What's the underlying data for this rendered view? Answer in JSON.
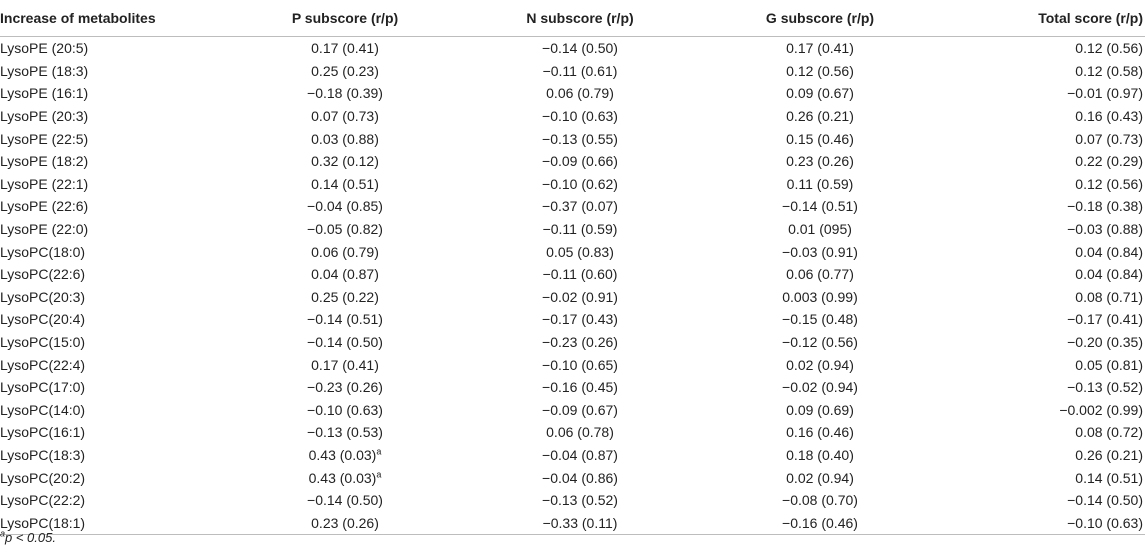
{
  "table": {
    "headers": [
      "Increase of metabolites",
      "P subscore (r/p)",
      "N subscore (r/p)",
      "G subscore (r/p)",
      "Total score (r/p)"
    ],
    "rows": [
      [
        "LysoPE (20:5)",
        "0.17 (0.41)",
        "−0.14 (0.50)",
        "0.17 (0.41)",
        "0.12 (0.56)"
      ],
      [
        "LysoPE (18:3)",
        "0.25 (0.23)",
        "−0.11 (0.61)",
        "0.12 (0.56)",
        "0.12 (0.58)"
      ],
      [
        "LysoPE (16:1)",
        "−0.18 (0.39)",
        "0.06 (0.79)",
        "0.09 (0.67)",
        "−0.01 (0.97)"
      ],
      [
        "LysoPE (20:3)",
        "0.07 (0.73)",
        "−0.10 (0.63)",
        "0.26 (0.21)",
        "0.16 (0.43)"
      ],
      [
        "LysoPE (22:5)",
        "0.03 (0.88)",
        "−0.13 (0.55)",
        "0.15 (0.46)",
        "0.07 (0.73)"
      ],
      [
        "LysoPE (18:2)",
        "0.32 (0.12)",
        "−0.09 (0.66)",
        "0.23 (0.26)",
        "0.22 (0.29)"
      ],
      [
        "LysoPE (22:1)",
        "0.14 (0.51)",
        "−0.10 (0.62)",
        "0.11 (0.59)",
        "0.12 (0.56)"
      ],
      [
        "LysoPE (22:6)",
        "−0.04 (0.85)",
        "−0.37 (0.07)",
        "−0.14 (0.51)",
        "−0.18 (0.38)"
      ],
      [
        "LysoPE (22:0)",
        "−0.05 (0.82)",
        "−0.11 (0.59)",
        "0.01 (095)",
        "−0.03 (0.88)"
      ],
      [
        "LysoPC(18:0)",
        "0.06 (0.79)",
        "0.05 (0.83)",
        "−0.03 (0.91)",
        "0.04 (0.84)"
      ],
      [
        "LysoPC(22:6)",
        "0.04 (0.87)",
        "−0.11 (0.60)",
        "0.06 (0.77)",
        "0.04 (0.84)"
      ],
      [
        "LysoPC(20:3)",
        "0.25 (0.22)",
        "−0.02 (0.91)",
        "0.003 (0.99)",
        "0.08 (0.71)"
      ],
      [
        "LysoPC(20:4)",
        "−0.14 (0.51)",
        "−0.17 (0.43)",
        "−0.15 (0.48)",
        "−0.17 (0.41)"
      ],
      [
        "LysoPC(15:0)",
        "−0.14 (0.50)",
        "−0.23 (0.26)",
        "−0.12 (0.56)",
        "−0.20 (0.35)"
      ],
      [
        "LysoPC(22:4)",
        "0.17 (0.41)",
        "−0.10 (0.65)",
        "0.02 (0.94)",
        "0.05 (0.81)"
      ],
      [
        "LysoPC(17:0)",
        "−0.23 (0.26)",
        "−0.16 (0.45)",
        "−0.02 (0.94)",
        "−0.13 (0.52)"
      ],
      [
        "LysoPC(14:0)",
        "−0.10 (0.63)",
        "−0.09 (0.67)",
        "0.09 (0.69)",
        "−0.002 (0.99)"
      ],
      [
        "LysoPC(16:1)",
        "−0.13 (0.53)",
        "0.06 (0.78)",
        "0.16 (0.46)",
        "0.08 (0.72)"
      ],
      [
        "LysoPC(18:3)",
        "0.43 (0.03)",
        "−0.04 (0.87)",
        "0.18 (0.40)",
        "0.26 (0.21)"
      ],
      [
        "LysoPC(20:2)",
        "0.43 (0.03)",
        "−0.04 (0.86)",
        "0.02 (0.94)",
        "0.14 (0.51)"
      ],
      [
        "LysoPC(22:2)",
        "−0.14 (0.50)",
        "−0.13 (0.52)",
        "−0.08 (0.70)",
        "−0.14 (0.50)"
      ],
      [
        "LysoPC(18:1)",
        "0.23 (0.26)",
        "−0.33 (0.11)",
        "−0.16 (0.46)",
        "−0.10 (0.63)"
      ]
    ],
    "superscripts": {
      "18": "a",
      "19": "a"
    }
  },
  "footnote": {
    "marker": "a",
    "text": "p < 0.05."
  }
}
